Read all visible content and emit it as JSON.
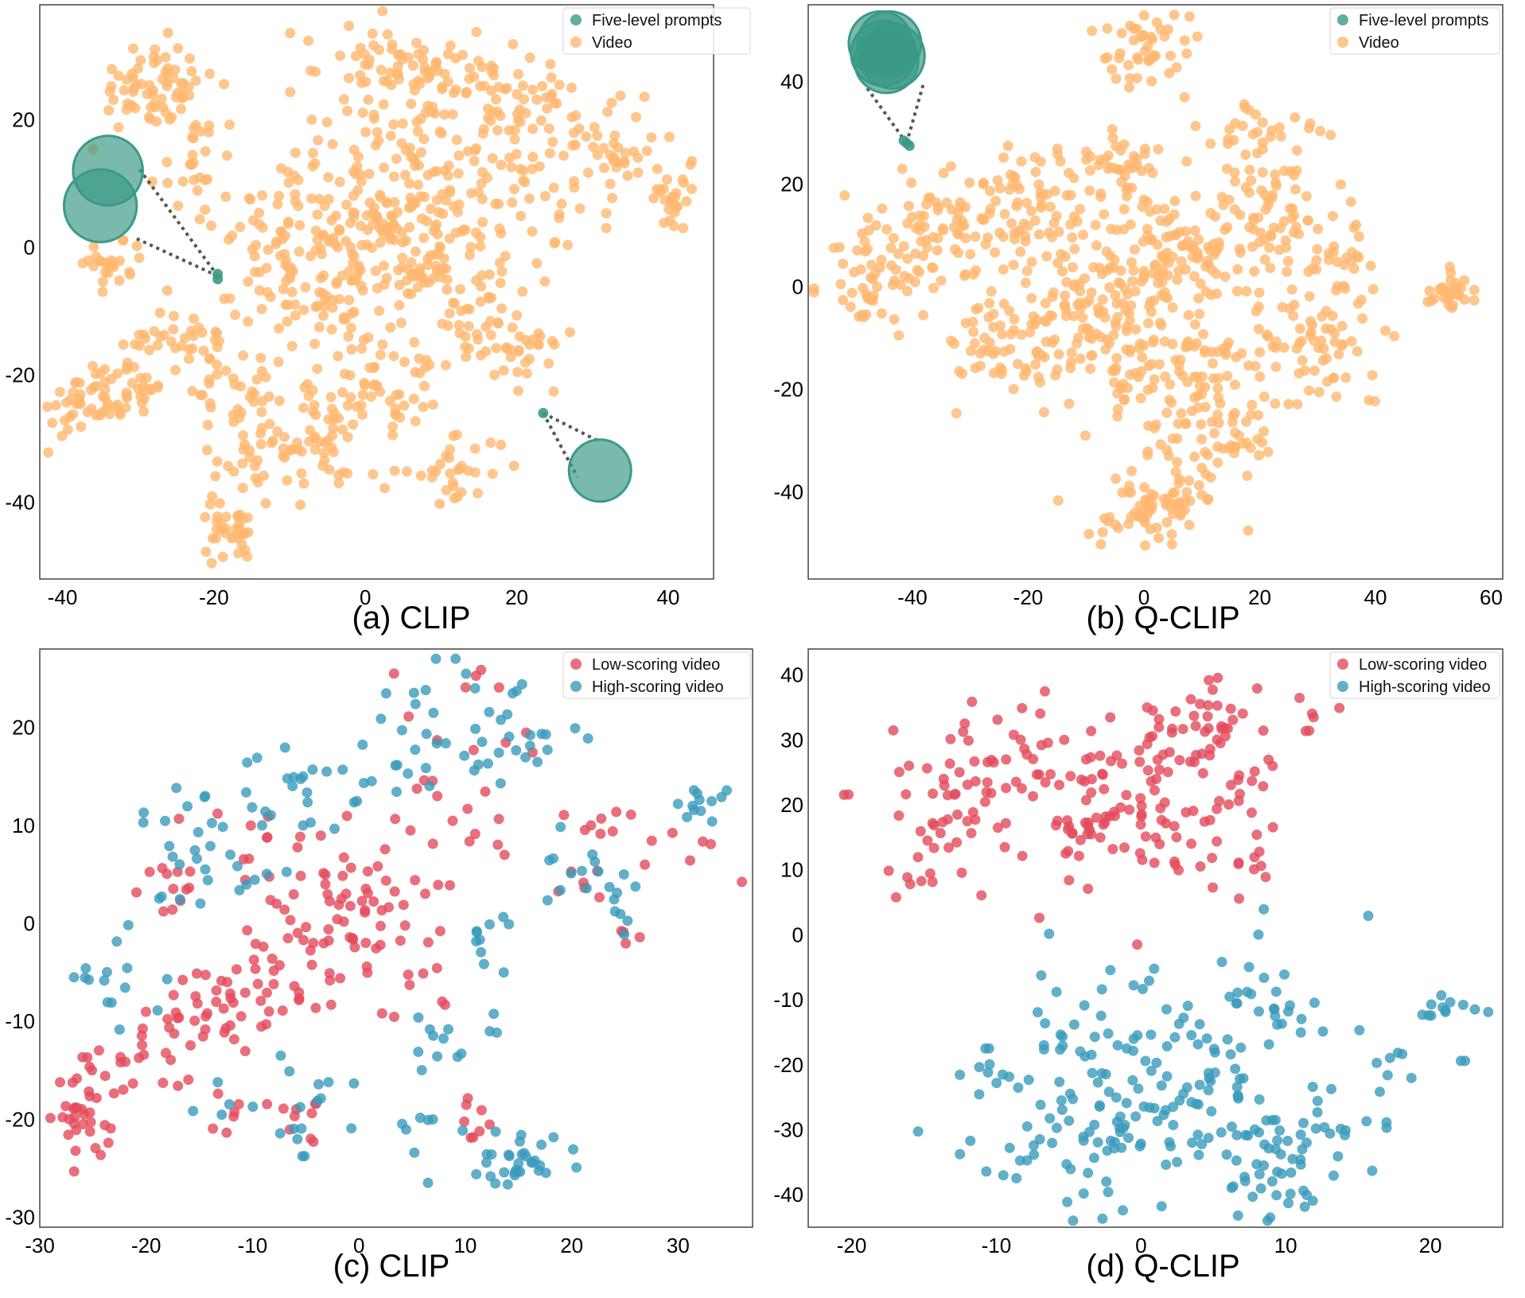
{
  "figure": {
    "kind": "t-SNE comparison of CLIP and Q-CLIP embeddings"
  },
  "colors": {
    "prompt": "#3a9a85",
    "video": "#ffb870",
    "low": "#e34b5c",
    "high": "#3a9bbb",
    "frame": "#444444",
    "leader": "#555555"
  },
  "chart_data": [
    {
      "type": "scatter",
      "title": "(a) CLIP",
      "xlim": [
        -43,
        46
      ],
      "ylim": [
        -52,
        38
      ],
      "xticks": [
        -40,
        -20,
        0,
        20,
        40
      ],
      "yticks": [
        -40,
        -20,
        0,
        20
      ],
      "legend_position": "top-right",
      "legend": [
        "Five-level prompts",
        "Video"
      ],
      "series": [
        {
          "name": "Five-level prompts",
          "color_key": "prompt",
          "points": [
            [
              -19.5,
              -4.2
            ],
            [
              -19.5,
              -5.0
            ],
            [
              23.5,
              -26.0
            ]
          ],
          "insets": [
            {
              "anchor": [
                -19.5,
                -4.5
              ],
              "circles": [
                {
                  "x": -34,
                  "y": 12,
                  "r": 4.6
                },
                {
                  "x": -35,
                  "y": 6.5,
                  "r": 4.8
                }
              ],
              "leader_ends": [
                [
                  -30,
                  12.5
                ],
                [
                  -30.5,
                  1.5
                ]
              ]
            },
            {
              "anchor": [
                23.5,
                -26.0
              ],
              "circles": [
                {
                  "x": 31,
                  "y": -35,
                  "r": 4.1
                }
              ],
              "leader_ends": [
                [
                  31,
                  -30.5
                ],
                [
                  28,
                  -36
                ]
              ]
            }
          ]
        },
        {
          "name": "Video",
          "color_key": "video",
          "clusters": [
            {
              "cx": -28,
              "cy": 25,
              "sx": 4,
              "sy": 3.5,
              "n": 70
            },
            {
              "cx": -22,
              "cy": 14,
              "sx": 3,
              "sy": 4,
              "n": 25
            },
            {
              "cx": -33,
              "cy": -3,
              "sx": 1.8,
              "sy": 2,
              "n": 25
            },
            {
              "cx": -24,
              "cy": -15,
              "sx": 4,
              "sy": 3,
              "n": 45
            },
            {
              "cx": -37,
              "cy": -25,
              "sx": 2.5,
              "sy": 2.5,
              "n": 45
            },
            {
              "cx": -30,
              "cy": -22,
              "sx": 2.5,
              "sy": 3,
              "n": 25
            },
            {
              "cx": -18,
              "cy": -45,
              "sx": 1.8,
              "sy": 2.2,
              "n": 35
            },
            {
              "cx": -14,
              "cy": -28,
              "sx": 4,
              "sy": 6,
              "n": 55
            },
            {
              "cx": -5,
              "cy": -30,
              "sx": 4,
              "sy": 4,
              "n": 45
            },
            {
              "cx": 2,
              "cy": -22,
              "sx": 4,
              "sy": 5,
              "n": 45
            },
            {
              "cx": 12,
              "cy": -35,
              "sx": 3,
              "sy": 2.5,
              "n": 30
            },
            {
              "cx": 15,
              "cy": -12,
              "sx": 4,
              "sy": 4,
              "n": 40
            },
            {
              "cx": 20,
              "cy": -16,
              "sx": 3,
              "sy": 3,
              "n": 25
            },
            {
              "cx": 5,
              "cy": 0,
              "sx": 6,
              "sy": 6,
              "n": 140
            },
            {
              "cx": -8,
              "cy": 5,
              "sx": 5,
              "sy": 6,
              "n": 70
            },
            {
              "cx": 8,
              "cy": 15,
              "sx": 6,
              "sy": 6,
              "n": 80
            },
            {
              "cx": 0,
              "cy": 27,
              "sx": 4,
              "sy": 4,
              "n": 40
            },
            {
              "cx": 12,
              "cy": 28,
              "sx": 5,
              "sy": 3,
              "n": 50
            },
            {
              "cx": 22,
              "cy": 22,
              "sx": 4,
              "sy": 4,
              "n": 40
            },
            {
              "cx": 20,
              "cy": 6,
              "sx": 4,
              "sy": 5,
              "n": 40
            },
            {
              "cx": 33,
              "cy": 15,
              "sx": 4,
              "sy": 4,
              "n": 45
            },
            {
              "cx": 41,
              "cy": 7,
              "sx": 2,
              "sy": 2.5,
              "n": 25
            },
            {
              "cx": -10,
              "cy": -8,
              "sx": 4,
              "sy": 4,
              "n": 35
            },
            {
              "cx": -3,
              "cy": -10,
              "sx": 3,
              "sy": 4,
              "n": 25
            }
          ]
        }
      ]
    },
    {
      "type": "scatter",
      "title": "(b) Q-CLIP",
      "xlim": [
        -58,
        62
      ],
      "ylim": [
        -57,
        55
      ],
      "xticks": [
        -40,
        -20,
        0,
        20,
        40,
        60
      ],
      "yticks": [
        -40,
        -20,
        0,
        20,
        40
      ],
      "legend_position": "top-right",
      "legend": [
        "Five-level prompts",
        "Video"
      ],
      "series": [
        {
          "name": "Five-level prompts",
          "color_key": "prompt",
          "points": [
            [
              -41,
              28
            ],
            [
              -41.5,
              28.5
            ],
            [
              -40.5,
              27.5
            ]
          ],
          "insets": [
            {
              "anchor": [
                -41,
                28
              ],
              "circles": [
                {
                  "x": -45.5,
                  "y": 47.5,
                  "r": 5.5
                },
                {
                  "x": -44,
                  "y": 47.5,
                  "r": 5.5
                },
                {
                  "x": -45,
                  "y": 45.5,
                  "r": 5.6
                },
                {
                  "x": -43.5,
                  "y": 45,
                  "r": 5.6
                },
                {
                  "x": -44.5,
                  "y": 44,
                  "r": 5.5
                }
              ],
              "leader_ends": [
                [
                  -48,
                  39
                ],
                [
                  -38,
                  40
                ]
              ]
            }
          ]
        },
        {
          "name": "Video",
          "color_key": "video",
          "clusters": [
            {
              "cx": 0,
              "cy": 47,
              "sx": 4,
              "sy": 3.5,
              "n": 45
            },
            {
              "cx": -2,
              "cy": 25,
              "sx": 2,
              "sy": 2.5,
              "n": 20
            },
            {
              "cx": -47,
              "cy": 2,
              "sx": 4.5,
              "sy": 5,
              "n": 55
            },
            {
              "cx": -35,
              "cy": 12,
              "sx": 5,
              "sy": 6,
              "n": 60
            },
            {
              "cx": -22,
              "cy": 15,
              "sx": 6,
              "sy": 6,
              "n": 70
            },
            {
              "cx": -25,
              "cy": -10,
              "sx": 5,
              "sy": 6,
              "n": 55
            },
            {
              "cx": -10,
              "cy": -5,
              "sx": 6,
              "sy": 7,
              "n": 90
            },
            {
              "cx": 5,
              "cy": 5,
              "sx": 7,
              "sy": 7,
              "n": 120
            },
            {
              "cx": 5,
              "cy": -18,
              "sx": 8,
              "sy": 7,
              "n": 110
            },
            {
              "cx": 2,
              "cy": -42,
              "sx": 5,
              "sy": 4,
              "n": 75
            },
            {
              "cx": 22,
              "cy": 13,
              "sx": 6,
              "sy": 6,
              "n": 75
            },
            {
              "cx": 30,
              "cy": -12,
              "sx": 5,
              "sy": 6,
              "n": 60
            },
            {
              "cx": 20,
              "cy": 30,
              "sx": 6,
              "sy": 3,
              "n": 30
            },
            {
              "cx": 34,
              "cy": 5,
              "sx": 3,
              "sy": 4,
              "n": 25
            },
            {
              "cx": 53,
              "cy": -1,
              "sx": 2.5,
              "sy": 2,
              "n": 30
            },
            {
              "cx": -10,
              "cy": 22,
              "sx": 4,
              "sy": 3,
              "n": 25
            },
            {
              "cx": 14,
              "cy": -30,
              "sx": 5,
              "sy": 4,
              "n": 40
            }
          ]
        }
      ]
    },
    {
      "type": "scatter",
      "title": "(c) CLIP",
      "xlim": [
        -30,
        37
      ],
      "ylim": [
        -31,
        28
      ],
      "xticks": [
        -30,
        -20,
        -10,
        0,
        10,
        20,
        30
      ],
      "yticks": [
        -30,
        -20,
        -10,
        0,
        10,
        20
      ],
      "legend_position": "top-right",
      "legend": [
        "Low-scoring video",
        "High-scoring video"
      ],
      "series": [
        {
          "name": "Low-scoring video",
          "color_key": "low",
          "clusters": [
            {
              "cx": -26,
              "cy": -20,
              "sx": 1.5,
              "sy": 2.5,
              "n": 30
            },
            {
              "cx": -22,
              "cy": -14.5,
              "sx": 3,
              "sy": 1.5,
              "n": 18
            },
            {
              "cx": -17,
              "cy": -10,
              "sx": 2.5,
              "sy": 2.5,
              "n": 20
            },
            {
              "cx": -12,
              "cy": -8,
              "sx": 2.5,
              "sy": 2.5,
              "n": 20
            },
            {
              "cx": -6,
              "cy": -6,
              "sx": 3,
              "sy": 3,
              "n": 25
            },
            {
              "cx": -2,
              "cy": 2,
              "sx": 4,
              "sy": 4,
              "n": 60
            },
            {
              "cx": 5,
              "cy": -5,
              "sx": 3,
              "sy": 3,
              "n": 12
            },
            {
              "cx": 8,
              "cy": 11,
              "sx": 4,
              "sy": 3,
              "n": 18
            },
            {
              "cx": 10,
              "cy": 21,
              "sx": 3,
              "sy": 3,
              "n": 10
            },
            {
              "cx": -16,
              "cy": 4,
              "sx": 2.5,
              "sy": 2,
              "n": 12
            },
            {
              "cx": -12,
              "cy": -19,
              "sx": 1,
              "sy": 1.5,
              "n": 6
            },
            {
              "cx": -5,
              "cy": -21,
              "sx": 2,
              "sy": 1.5,
              "n": 10
            },
            {
              "cx": 11,
              "cy": -20,
              "sx": 1.5,
              "sy": 1.5,
              "n": 8
            },
            {
              "cx": 21,
              "cy": 4,
              "sx": 1.5,
              "sy": 1.5,
              "n": 6
            },
            {
              "cx": 27,
              "cy": 9,
              "sx": 3,
              "sy": 2,
              "n": 14
            },
            {
              "cx": 25,
              "cy": -1,
              "sx": 1,
              "sy": 1,
              "n": 4
            },
            {
              "cx": -10,
              "cy": 9,
              "sx": 2.5,
              "sy": 2,
              "n": 10
            }
          ]
        },
        {
          "name": "High-scoring video",
          "color_key": "high",
          "clusters": [
            {
              "cx": -14,
              "cy": 6,
              "sx": 4,
              "sy": 4,
              "n": 30
            },
            {
              "cx": -4,
              "cy": 13,
              "sx": 5,
              "sy": 3,
              "n": 28
            },
            {
              "cx": 8,
              "cy": 18,
              "sx": 5,
              "sy": 4,
              "n": 30
            },
            {
              "cx": 15,
              "cy": 20,
              "sx": 3,
              "sy": 3,
              "n": 15
            },
            {
              "cx": 21,
              "cy": 6,
              "sx": 2,
              "sy": 2,
              "n": 12
            },
            {
              "cx": 24,
              "cy": 1,
              "sx": 1.5,
              "sy": 1.5,
              "n": 8
            },
            {
              "cx": 32,
              "cy": 12.5,
              "sx": 1.5,
              "sy": 1.2,
              "n": 12
            },
            {
              "cx": 14,
              "cy": -25,
              "sx": 3,
              "sy": 2,
              "n": 35
            },
            {
              "cx": -13,
              "cy": -19,
              "sx": 1.5,
              "sy": 1,
              "n": 5
            },
            {
              "cx": -6,
              "cy": -22,
              "sx": 2,
              "sy": 2,
              "n": 8
            },
            {
              "cx": 6,
              "cy": -20,
              "sx": 1.5,
              "sy": 1,
              "n": 5
            },
            {
              "cx": 8,
              "cy": -11,
              "sx": 3,
              "sy": 2.5,
              "n": 14
            },
            {
              "cx": -22,
              "cy": -7,
              "sx": 2,
              "sy": 2.5,
              "n": 8
            },
            {
              "cx": -4,
              "cy": -17,
              "sx": 1.5,
              "sy": 2,
              "n": 6
            },
            {
              "cx": 12,
              "cy": -1,
              "sx": 2,
              "sy": 2,
              "n": 10
            },
            {
              "cx": -25,
              "cy": -5,
              "sx": 1,
              "sy": 2,
              "n": 5
            }
          ]
        }
      ]
    },
    {
      "type": "scatter",
      "title": "(d) Q-CLIP",
      "xlim": [
        -23,
        25
      ],
      "ylim": [
        -45,
        44
      ],
      "xticks": [
        -20,
        -10,
        0,
        10,
        20
      ],
      "yticks": [
        -40,
        -30,
        -20,
        -10,
        0,
        10,
        20,
        30,
        40
      ],
      "legend_position": "top-right",
      "legend": [
        "Low-scoring video",
        "High-scoring video"
      ],
      "series": [
        {
          "name": "Low-scoring video",
          "color_key": "low",
          "clusters": [
            {
              "cx": -6,
              "cy": 22,
              "sx": 4,
              "sy": 8,
              "n": 90
            },
            {
              "cx": 2,
              "cy": 20,
              "sx": 4,
              "sy": 8,
              "n": 70
            },
            {
              "cx": 6,
              "cy": 32,
              "sx": 3,
              "sy": 4,
              "n": 40
            },
            {
              "cx": -14,
              "cy": 20,
              "sx": 2,
              "sy": 7,
              "n": 30
            },
            {
              "cx": -16,
              "cy": 9,
              "sx": 1.5,
              "sy": 1,
              "n": 6
            },
            {
              "cx": -20.5,
              "cy": 21.5,
              "sx": 0.3,
              "sy": 0.3,
              "n": 2
            },
            {
              "cx": 7,
              "cy": 12,
              "sx": 2,
              "sy": 2,
              "n": 8
            }
          ]
        },
        {
          "name": "High-scoring video",
          "color_key": "high",
          "clusters": [
            {
              "cx": 3,
              "cy": -22,
              "sx": 6,
              "sy": 9,
              "n": 180
            },
            {
              "cx": -6,
              "cy": -28,
              "sx": 4,
              "sy": 7,
              "n": 40
            },
            {
              "cx": 10,
              "cy": -35,
              "sx": 3,
              "sy": 4,
              "n": 35
            },
            {
              "cx": 21.5,
              "cy": -11,
              "sx": 1.3,
              "sy": 1,
              "n": 12
            },
            {
              "cx": 18,
              "cy": -20,
              "sx": 1.5,
              "sy": 3,
              "n": 6
            },
            {
              "cx": -12,
              "cy": -20,
              "sx": 1.5,
              "sy": 2,
              "n": 5
            },
            {
              "cx": 8,
              "cy": 0,
              "sx": 0.2,
              "sy": 0.2,
              "n": 1
            },
            {
              "cx": 22.5,
              "cy": -20,
              "sx": 0.4,
              "sy": 0.5,
              "n": 2
            }
          ]
        }
      ]
    }
  ]
}
